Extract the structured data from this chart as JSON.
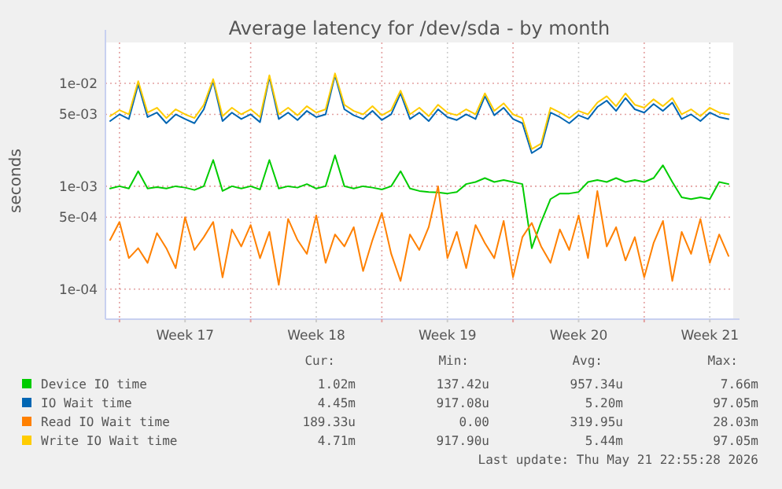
{
  "chart_data": {
    "type": "line",
    "title": "Average latency for /dev/sda - by month",
    "ylabel": "seconds",
    "log": "y",
    "grid": true,
    "legend": "bottom",
    "marker": "none",
    "line_style": "solid",
    "ylim": [
      5.1e-05,
      0.025
    ],
    "yticks": [
      {
        "value": 0.01,
        "label": "1e-02"
      },
      {
        "value": 0.005,
        "label": "5e-03"
      },
      {
        "value": 0.001,
        "label": "1e-03"
      },
      {
        "value": 0.0005,
        "label": "5e-04"
      },
      {
        "value": 0.0001,
        "label": "1e-04"
      }
    ],
    "categories": [
      null,
      null,
      null,
      null,
      null,
      null,
      null,
      null,
      "Week 17",
      null,
      null,
      null,
      null,
      null,
      null,
      null,
      null,
      null,
      null,
      null,
      null,
      null,
      "Week 18",
      null,
      null,
      null,
      null,
      null,
      null,
      null,
      null,
      null,
      null,
      null,
      null,
      null,
      "Week 19",
      null,
      null,
      null,
      null,
      null,
      null,
      null,
      null,
      null,
      null,
      null,
      null,
      null,
      "Week 20",
      null,
      null,
      null,
      null,
      null,
      null,
      null,
      null,
      null,
      null,
      null,
      null,
      null,
      "Week 21",
      null,
      null
    ],
    "series": [
      {
        "name": "Device IO time",
        "color": "#00cc00",
        "values": [
          0.00095,
          0.001,
          0.00095,
          0.0014,
          0.00095,
          0.00098,
          0.00095,
          0.001,
          0.00097,
          0.00092,
          0.001,
          0.0018,
          0.0009,
          0.001,
          0.00095,
          0.001,
          0.00093,
          0.0018,
          0.00095,
          0.001,
          0.00097,
          0.00105,
          0.00095,
          0.001,
          0.002,
          0.001,
          0.00095,
          0.001,
          0.00097,
          0.00093,
          0.001,
          0.0014,
          0.00095,
          0.0009,
          0.00088,
          0.00087,
          0.00085,
          0.00088,
          0.00105,
          0.0011,
          0.0012,
          0.0011,
          0.00115,
          0.0011,
          0.00105,
          0.00025,
          0.00045,
          0.00075,
          0.00085,
          0.00085,
          0.00088,
          0.0011,
          0.00115,
          0.0011,
          0.0012,
          0.0011,
          0.00115,
          0.0011,
          0.0012,
          0.0016,
          0.0011,
          0.00078,
          0.00075,
          0.00078,
          0.00075,
          0.0011,
          0.00105
        ]
      },
      {
        "name": "IO Wait time",
        "color": "#0066b3",
        "values": [
          0.0043,
          0.005,
          0.0045,
          0.0098,
          0.0047,
          0.0052,
          0.0041,
          0.005,
          0.0045,
          0.0041,
          0.0056,
          0.0105,
          0.0043,
          0.0052,
          0.0045,
          0.005,
          0.0042,
          0.0115,
          0.0045,
          0.0052,
          0.0044,
          0.0054,
          0.0047,
          0.005,
          0.012,
          0.0056,
          0.0049,
          0.0045,
          0.0054,
          0.0044,
          0.005,
          0.008,
          0.0045,
          0.0052,
          0.0043,
          0.0056,
          0.0047,
          0.0044,
          0.005,
          0.0045,
          0.0075,
          0.0049,
          0.0058,
          0.0045,
          0.0041,
          0.0021,
          0.0024,
          0.0052,
          0.0047,
          0.0041,
          0.0049,
          0.0045,
          0.0059,
          0.0068,
          0.0054,
          0.0072,
          0.0056,
          0.0052,
          0.0063,
          0.0054,
          0.0065,
          0.0045,
          0.005,
          0.0043,
          0.0052,
          0.0047,
          0.0045
        ]
      },
      {
        "name": "Read IO Wait time",
        "color": "#ff8000",
        "values": [
          0.0003,
          0.00045,
          0.0002,
          0.00025,
          0.00018,
          0.00035,
          0.00025,
          0.00016,
          0.0005,
          0.00024,
          0.00032,
          0.00045,
          0.00013,
          0.00038,
          0.00026,
          0.00042,
          0.0002,
          0.00036,
          0.00011,
          0.00048,
          0.0003,
          0.00022,
          0.00052,
          0.00018,
          0.00034,
          0.00026,
          0.0004,
          0.00015,
          0.0003,
          0.00055,
          0.00022,
          0.00012,
          0.00034,
          0.00024,
          0.0004,
          0.001,
          0.0002,
          0.00036,
          0.00016,
          0.00042,
          0.00028,
          0.0002,
          0.00046,
          0.00013,
          0.00032,
          0.00044,
          0.00026,
          0.00018,
          0.00038,
          0.00024,
          0.00052,
          0.0002,
          0.0009,
          0.00026,
          0.0004,
          0.00019,
          0.00032,
          0.00013,
          0.00028,
          0.00046,
          0.00012,
          0.00036,
          0.00022,
          0.00048,
          0.00018,
          0.00034,
          0.00021
        ]
      },
      {
        "name": "Write IO Wait time",
        "color": "#ffcc00",
        "values": [
          0.0048,
          0.0055,
          0.005,
          0.0105,
          0.0052,
          0.0058,
          0.0046,
          0.0056,
          0.005,
          0.0046,
          0.0062,
          0.011,
          0.0048,
          0.0058,
          0.005,
          0.0056,
          0.0047,
          0.012,
          0.005,
          0.0058,
          0.0049,
          0.006,
          0.0052,
          0.0056,
          0.0125,
          0.0062,
          0.0054,
          0.005,
          0.006,
          0.0049,
          0.0055,
          0.0085,
          0.005,
          0.0058,
          0.0048,
          0.0062,
          0.0052,
          0.0049,
          0.0056,
          0.005,
          0.008,
          0.0054,
          0.0064,
          0.005,
          0.0046,
          0.0023,
          0.0026,
          0.0058,
          0.0052,
          0.0046,
          0.0054,
          0.005,
          0.0065,
          0.0075,
          0.006,
          0.008,
          0.0062,
          0.0058,
          0.007,
          0.006,
          0.0072,
          0.005,
          0.0056,
          0.0048,
          0.0058,
          0.0052,
          0.005
        ]
      }
    ],
    "annotations": [
      "Cur:",
      "Min:",
      "Avg:",
      "Max:",
      "1.02m",
      "137.42u",
      "957.34u",
      "7.66m",
      "4.45m",
      "917.08u",
      "5.20m",
      "97.05m",
      "189.33u",
      "0.00",
      "319.95u",
      "28.03m",
      "4.71m",
      "917.90u",
      "5.44m",
      "97.05m",
      "Last update: Thu May 21 22:55:28 2026"
    ]
  }
}
